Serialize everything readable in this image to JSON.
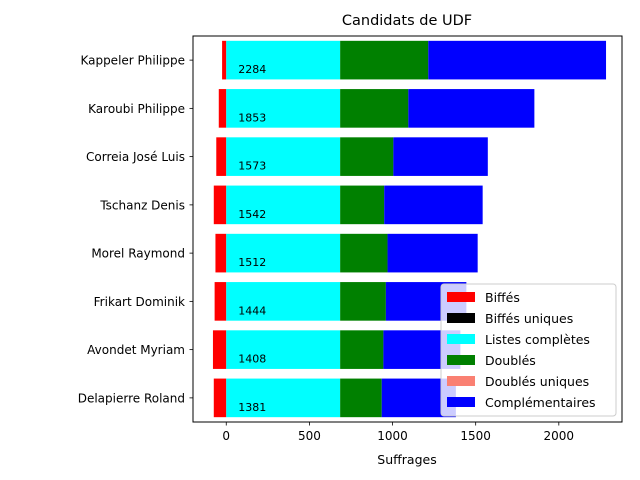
{
  "chart_data": {
    "type": "bar",
    "orientation": "horizontal",
    "stacked": true,
    "title": "Candidats de UDF",
    "xlabel": "Suffrages",
    "ylabel": "",
    "xlim": [
      -200,
      2380
    ],
    "xticks": [
      0,
      500,
      1000,
      1500,
      2000
    ],
    "xtick_labels": [
      "0",
      "500",
      "1000",
      "1500",
      "2000"
    ],
    "grid": false,
    "legend_position": "lower-right",
    "categories": [
      "Kappeler Philippe",
      "Karoubi Philippe",
      "Correia José Luis",
      "Tschanz Denis",
      "Morel Raymond",
      "Frikart Dominik",
      "Avondet Myriam",
      "Delapierre Roland"
    ],
    "totals": [
      2284,
      1853,
      1573,
      1542,
      1512,
      1444,
      1408,
      1381
    ],
    "series": [
      {
        "name": "Biffés",
        "color": "#ff0000",
        "values": [
          -25,
          -45,
          -60,
          -75,
          -65,
          -70,
          -80,
          -75
        ]
      },
      {
        "name": "Biffés uniques",
        "color": "#000000",
        "values": [
          0,
          0,
          0,
          0,
          0,
          0,
          0,
          0
        ]
      },
      {
        "name": "Listes complètes",
        "color": "#00ffff",
        "values": [
          685,
          685,
          685,
          685,
          685,
          685,
          685,
          685
        ]
      },
      {
        "name": "Doublés",
        "color": "#008000",
        "values": [
          530,
          410,
          320,
          265,
          285,
          275,
          260,
          250
        ]
      },
      {
        "name": "Doublés uniques",
        "color": "#fa8072",
        "values": [
          0,
          0,
          0,
          0,
          0,
          0,
          0,
          0
        ]
      },
      {
        "name": "Complémentaires",
        "color": "#0000ff",
        "values": [
          1069,
          758,
          568,
          592,
          542,
          484,
          463,
          446
        ]
      }
    ]
  }
}
